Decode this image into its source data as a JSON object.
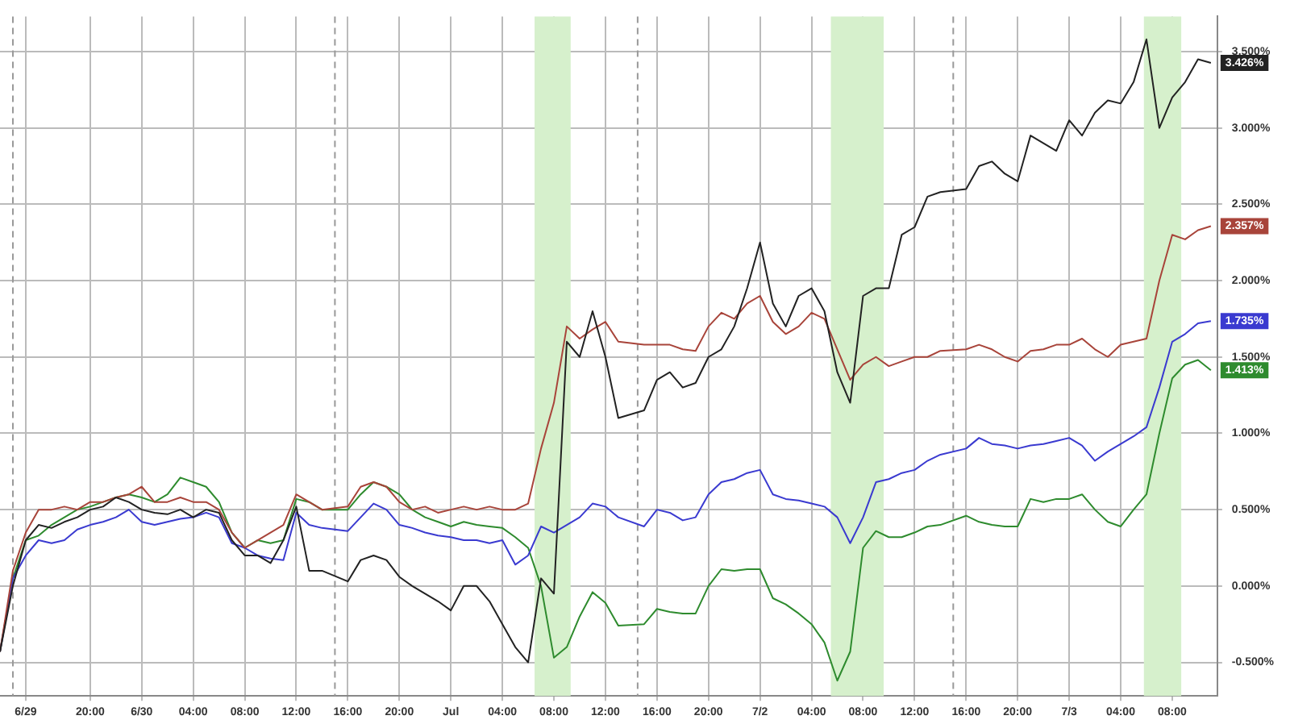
{
  "chart_data": {
    "type": "line",
    "x": [
      "--06-29T13:00",
      "--06-29T14:00",
      "--06-29T15:00",
      "--06-29T16:00",
      "--06-29T17:00",
      "--06-29T18:00",
      "--06-29T19:00",
      "--06-29T20:00",
      "--06-29T21:00",
      "--06-29T22:00",
      "--06-29T23:00",
      "--06-30T00:00",
      "--06-30T01:00",
      "--06-30T02:00",
      "--06-30T03:00",
      "--06-30T04:00",
      "--06-30T05:00",
      "--06-30T06:00",
      "--06-30T07:00",
      "--06-30T08:00",
      "--06-30T09:00",
      "--06-30T10:00",
      "--06-30T11:00",
      "--06-30T12:00",
      "--06-30T13:00",
      "--06-30T14:00",
      "--06-30T16:00",
      "--06-30T17:00",
      "--06-30T18:00",
      "--06-30T19:00",
      "--06-30T20:00",
      "--06-30T21:00",
      "--06-30T22:00",
      "--06-30T23:00",
      "--07-01T00:00",
      "--07-01T01:00",
      "--07-01T02:00",
      "--07-01T03:00",
      "--07-01T04:00",
      "--07-01T05:00",
      "--07-01T06:00",
      "--07-01T07:00",
      "--07-01T08:00",
      "--07-01T09:00",
      "--07-01T10:00",
      "--07-01T11:00",
      "--07-01T12:00",
      "--07-01T13:00",
      "--07-01T15:00",
      "--07-01T16:00",
      "--07-01T17:00",
      "--07-01T18:00",
      "--07-01T19:00",
      "--07-01T20:00",
      "--07-01T21:00",
      "--07-01T22:00",
      "--07-01T23:00",
      "--07-02T00:00",
      "--07-02T01:00",
      "--07-02T02:00",
      "--07-02T03:00",
      "--07-02T04:00",
      "--07-02T05:00",
      "--07-02T06:00",
      "--07-02T07:00",
      "--07-02T08:00",
      "--07-02T09:00",
      "--07-02T10:00",
      "--07-02T11:00",
      "--07-02T12:00",
      "--07-02T13:00",
      "--07-02T14:00",
      "--07-02T16:00",
      "--07-02T17:00",
      "--07-02T18:00",
      "--07-02T19:00",
      "--07-02T20:00",
      "--07-02T21:00",
      "--07-02T22:00",
      "--07-02T23:00",
      "--07-03T00:00",
      "--07-03T01:00",
      "--07-03T02:00",
      "--07-03T03:00",
      "--07-03T04:00",
      "--07-03T05:00",
      "--07-03T06:00",
      "--07-03T07:00",
      "--07-03T08:00",
      "--07-03T09:00",
      "--07-03T10:00",
      "--07-03T11:00"
    ],
    "series": [
      {
        "color": "#222222",
        "values": [
          -0.43,
          0.0,
          0.3,
          0.4,
          0.38,
          0.42,
          0.45,
          0.5,
          0.52,
          0.58,
          0.55,
          0.5,
          0.48,
          0.47,
          0.5,
          0.45,
          0.5,
          0.48,
          0.3,
          0.2,
          0.2,
          0.15,
          0.3,
          0.52,
          0.1,
          0.1,
          0.03,
          0.17,
          0.2,
          0.17,
          0.06,
          0.0,
          -0.05,
          -0.1,
          -0.16,
          0.0,
          0.0,
          -0.1,
          -0.25,
          -0.4,
          -0.5,
          0.05,
          -0.05,
          1.6,
          1.5,
          1.8,
          1.5,
          1.1,
          1.15,
          1.35,
          1.4,
          1.3,
          1.33,
          1.5,
          1.55,
          1.7,
          1.95,
          2.25,
          1.85,
          1.7,
          1.9,
          1.95,
          1.8,
          1.4,
          1.2,
          1.9,
          1.95,
          1.95,
          2.3,
          2.35,
          2.55,
          2.58,
          2.6,
          2.75,
          2.78,
          2.7,
          2.65,
          2.95,
          2.9,
          2.85,
          3.05,
          2.95,
          3.1,
          3.18,
          3.16,
          3.3,
          3.58,
          3.0,
          3.2,
          3.3,
          3.45,
          3.426
        ],
        "value_labels": [
          null,
          null,
          null,
          null,
          null,
          null,
          null,
          null,
          null,
          null,
          null,
          null,
          null,
          null,
          null,
          null,
          null,
          null,
          null,
          null,
          null,
          null,
          null,
          null,
          null,
          null,
          null,
          null,
          null,
          null,
          null,
          null,
          null,
          null,
          null,
          null,
          null,
          null,
          null,
          null,
          null,
          null,
          null,
          null,
          null,
          null,
          null,
          null,
          null,
          null,
          null,
          null,
          null,
          null,
          null,
          null,
          null,
          null,
          null,
          null,
          null,
          null,
          null,
          null,
          null,
          null,
          null,
          null,
          null,
          null,
          null,
          null,
          null,
          null,
          null,
          null,
          null,
          null,
          null,
          null,
          null,
          null,
          null,
          null,
          null,
          null,
          null,
          null,
          null,
          null,
          null,
          "3.426%"
        ]
      },
      {
        "color": "#a8443a",
        "values": [
          -0.43,
          0.1,
          0.35,
          0.5,
          0.5,
          0.52,
          0.5,
          0.55,
          0.55,
          0.58,
          0.6,
          0.65,
          0.55,
          0.55,
          0.58,
          0.55,
          0.55,
          0.5,
          0.35,
          0.25,
          0.3,
          0.35,
          0.4,
          0.6,
          0.55,
          0.5,
          0.52,
          0.65,
          0.68,
          0.65,
          0.55,
          0.5,
          0.52,
          0.48,
          0.5,
          0.52,
          0.5,
          0.52,
          0.5,
          0.5,
          0.54,
          0.9,
          1.2,
          1.7,
          1.62,
          1.68,
          1.73,
          1.6,
          1.58,
          1.58,
          1.58,
          1.55,
          1.54,
          1.7,
          1.79,
          1.75,
          1.85,
          1.9,
          1.73,
          1.65,
          1.7,
          1.79,
          1.75,
          1.55,
          1.35,
          1.45,
          1.5,
          1.44,
          1.47,
          1.5,
          1.5,
          1.54,
          1.55,
          1.58,
          1.55,
          1.5,
          1.47,
          1.54,
          1.55,
          1.58,
          1.58,
          1.62,
          1.55,
          1.5,
          1.58,
          1.6,
          1.62,
          2.0,
          2.3,
          2.27,
          2.33,
          2.357
        ],
        "value_labels": [
          null,
          null,
          null,
          null,
          null,
          null,
          null,
          null,
          null,
          null,
          null,
          null,
          null,
          null,
          null,
          null,
          null,
          null,
          null,
          null,
          null,
          null,
          null,
          null,
          null,
          null,
          null,
          null,
          null,
          null,
          null,
          null,
          null,
          null,
          null,
          null,
          null,
          null,
          null,
          null,
          null,
          null,
          null,
          null,
          null,
          null,
          null,
          null,
          null,
          null,
          null,
          null,
          null,
          null,
          null,
          null,
          null,
          null,
          null,
          null,
          null,
          null,
          null,
          null,
          null,
          null,
          null,
          null,
          null,
          null,
          null,
          null,
          null,
          null,
          null,
          null,
          null,
          null,
          null,
          null,
          null,
          null,
          null,
          null,
          null,
          null,
          null,
          null,
          null,
          null,
          null,
          "2.357%"
        ]
      },
      {
        "color": "#3a3ad0",
        "values": [
          -0.43,
          0.05,
          0.2,
          0.3,
          0.28,
          0.3,
          0.37,
          0.4,
          0.42,
          0.45,
          0.5,
          0.42,
          0.4,
          0.42,
          0.44,
          0.45,
          0.48,
          0.45,
          0.28,
          0.25,
          0.2,
          0.18,
          0.17,
          0.48,
          0.4,
          0.38,
          0.36,
          0.45,
          0.54,
          0.5,
          0.4,
          0.38,
          0.35,
          0.33,
          0.32,
          0.3,
          0.3,
          0.28,
          0.3,
          0.14,
          0.2,
          0.39,
          0.35,
          0.4,
          0.45,
          0.54,
          0.52,
          0.45,
          0.39,
          0.5,
          0.48,
          0.43,
          0.45,
          0.6,
          0.68,
          0.7,
          0.74,
          0.76,
          0.6,
          0.57,
          0.56,
          0.54,
          0.52,
          0.45,
          0.28,
          0.45,
          0.68,
          0.7,
          0.74,
          0.76,
          0.82,
          0.86,
          0.9,
          0.97,
          0.93,
          0.92,
          0.9,
          0.92,
          0.93,
          0.95,
          0.97,
          0.92,
          0.82,
          0.88,
          0.93,
          0.98,
          1.04,
          1.3,
          1.6,
          1.65,
          1.72,
          1.735
        ],
        "value_labels": [
          null,
          null,
          null,
          null,
          null,
          null,
          null,
          null,
          null,
          null,
          null,
          null,
          null,
          null,
          null,
          null,
          null,
          null,
          null,
          null,
          null,
          null,
          null,
          null,
          null,
          null,
          null,
          null,
          null,
          null,
          null,
          null,
          null,
          null,
          null,
          null,
          null,
          null,
          null,
          null,
          null,
          null,
          null,
          null,
          null,
          null,
          null,
          null,
          null,
          null,
          null,
          null,
          null,
          null,
          null,
          null,
          null,
          null,
          null,
          null,
          null,
          null,
          null,
          null,
          null,
          null,
          null,
          null,
          null,
          null,
          null,
          null,
          null,
          null,
          null,
          null,
          null,
          null,
          null,
          null,
          null,
          null,
          null,
          null,
          null,
          null,
          null,
          null,
          null,
          null,
          null,
          "1.735%"
        ]
      },
      {
        "color": "#2e8b2e",
        "values": [
          -0.43,
          0.05,
          0.3,
          0.33,
          0.4,
          0.45,
          0.5,
          0.52,
          0.55,
          0.58,
          0.6,
          0.58,
          0.55,
          0.6,
          0.71,
          0.68,
          0.65,
          0.55,
          0.35,
          0.25,
          0.3,
          0.28,
          0.3,
          0.57,
          0.55,
          0.5,
          0.5,
          0.6,
          0.68,
          0.65,
          0.6,
          0.5,
          0.45,
          0.42,
          0.39,
          0.42,
          0.4,
          0.39,
          0.38,
          0.32,
          0.25,
          0.0,
          -0.47,
          -0.4,
          -0.2,
          -0.04,
          -0.11,
          -0.26,
          -0.25,
          -0.15,
          -0.17,
          -0.18,
          -0.18,
          0.0,
          0.11,
          0.1,
          0.11,
          0.11,
          -0.08,
          -0.12,
          -0.18,
          -0.25,
          -0.37,
          -0.62,
          -0.43,
          0.25,
          0.36,
          0.32,
          0.32,
          0.35,
          0.39,
          0.4,
          0.46,
          0.42,
          0.4,
          0.39,
          0.39,
          0.57,
          0.55,
          0.57,
          0.57,
          0.6,
          0.5,
          0.42,
          0.39,
          0.5,
          0.6,
          1.0,
          1.36,
          1.45,
          1.48,
          1.413
        ],
        "value_labels": [
          null,
          null,
          null,
          null,
          null,
          null,
          null,
          null,
          null,
          null,
          null,
          null,
          null,
          null,
          null,
          null,
          null,
          null,
          null,
          null,
          null,
          null,
          null,
          null,
          null,
          null,
          null,
          null,
          null,
          null,
          null,
          null,
          null,
          null,
          null,
          null,
          null,
          null,
          null,
          null,
          null,
          null,
          null,
          null,
          null,
          null,
          null,
          null,
          null,
          null,
          null,
          null,
          null,
          null,
          null,
          null,
          null,
          null,
          null,
          null,
          null,
          null,
          null,
          null,
          null,
          null,
          null,
          null,
          null,
          null,
          null,
          null,
          null,
          null,
          null,
          null,
          null,
          null,
          null,
          null,
          null,
          null,
          null,
          null,
          null,
          null,
          null,
          null,
          null,
          null,
          null,
          "1.413%"
        ]
      }
    ],
    "xlim": [
      "--06-29T13:00",
      "--07-03T11:30"
    ],
    "xticks": [
      {
        "value": "--06-29T15:00",
        "label": "6/29"
      },
      {
        "value": "--06-29T20:00",
        "label": "20:00"
      },
      {
        "value": "--06-30T00:00",
        "label": "6/30"
      },
      {
        "value": "--06-30T04:00",
        "label": "04:00"
      },
      {
        "value": "--06-30T08:00",
        "label": "08:00"
      },
      {
        "value": "--06-30T12:00",
        "label": "12:00"
      },
      {
        "value": "--06-30T16:00",
        "label": "16:00"
      },
      {
        "value": "--06-30T20:00",
        "label": "20:00"
      },
      {
        "value": "--07-01T00:00",
        "label": "Jul"
      },
      {
        "value": "--07-01T04:00",
        "label": "04:00"
      },
      {
        "value": "--07-01T08:00",
        "label": "08:00"
      },
      {
        "value": "--07-01T12:00",
        "label": "12:00"
      },
      {
        "value": "--07-01T16:00",
        "label": "16:00"
      },
      {
        "value": "--07-01T20:00",
        "label": "20:00"
      },
      {
        "value": "--07-02T00:00",
        "label": "7/2"
      },
      {
        "value": "--07-02T04:00",
        "label": "04:00"
      },
      {
        "value": "--07-02T08:00",
        "label": "08:00"
      },
      {
        "value": "--07-02T12:00",
        "label": "12:00"
      },
      {
        "value": "--07-02T16:00",
        "label": "16:00"
      },
      {
        "value": "--07-02T20:00",
        "label": "20:00"
      },
      {
        "value": "--07-03T00:00",
        "label": "7/3"
      },
      {
        "value": "--07-03T04:00",
        "label": "04:00"
      },
      {
        "value": "--07-03T08:00",
        "label": "08:00"
      }
    ],
    "ylim": [
      -0.72,
      3.73
    ],
    "yticks": [
      {
        "value": -0.5,
        "label": "-0.500%"
      },
      {
        "value": 0,
        "label": "0.000%"
      },
      {
        "value": 0.5,
        "label": "0.500%"
      },
      {
        "value": 1,
        "label": "1.000%"
      },
      {
        "value": 1.5,
        "label": "1.500%"
      },
      {
        "value": 2,
        "label": "2.000%"
      },
      {
        "value": 2.5,
        "label": "2.500%"
      },
      {
        "value": 3,
        "label": "3.000%"
      },
      {
        "value": 3.5,
        "label": "3.500%"
      }
    ],
    "grid": true,
    "legend": false,
    "marker": "none",
    "line_style": "solid",
    "ref_lines": [
      {
        "axis": "x",
        "value": "--06-29T14:00",
        "line_style": "dashed",
        "color": "#999999"
      },
      {
        "axis": "x",
        "value": "--06-30T15:00",
        "line_style": "dashed",
        "color": "#999999"
      },
      {
        "axis": "x",
        "value": "--07-01T14:30",
        "line_style": "dashed",
        "color": "#999999"
      },
      {
        "axis": "x",
        "value": "--07-02T15:00",
        "line_style": "dashed",
        "color": "#999999"
      }
    ],
    "bands": [
      {
        "axis": "x",
        "from": "--07-01T06:30",
        "to": "--07-01T09:18",
        "color": "#d6f0cc"
      },
      {
        "axis": "x",
        "from": "--07-02T05:30",
        "to": "--07-02T09:36",
        "color": "#d6f0cc"
      },
      {
        "axis": "x",
        "from": "--07-03T05:48",
        "to": "--07-03T08:42",
        "color": "#d6f0cc"
      }
    ]
  }
}
